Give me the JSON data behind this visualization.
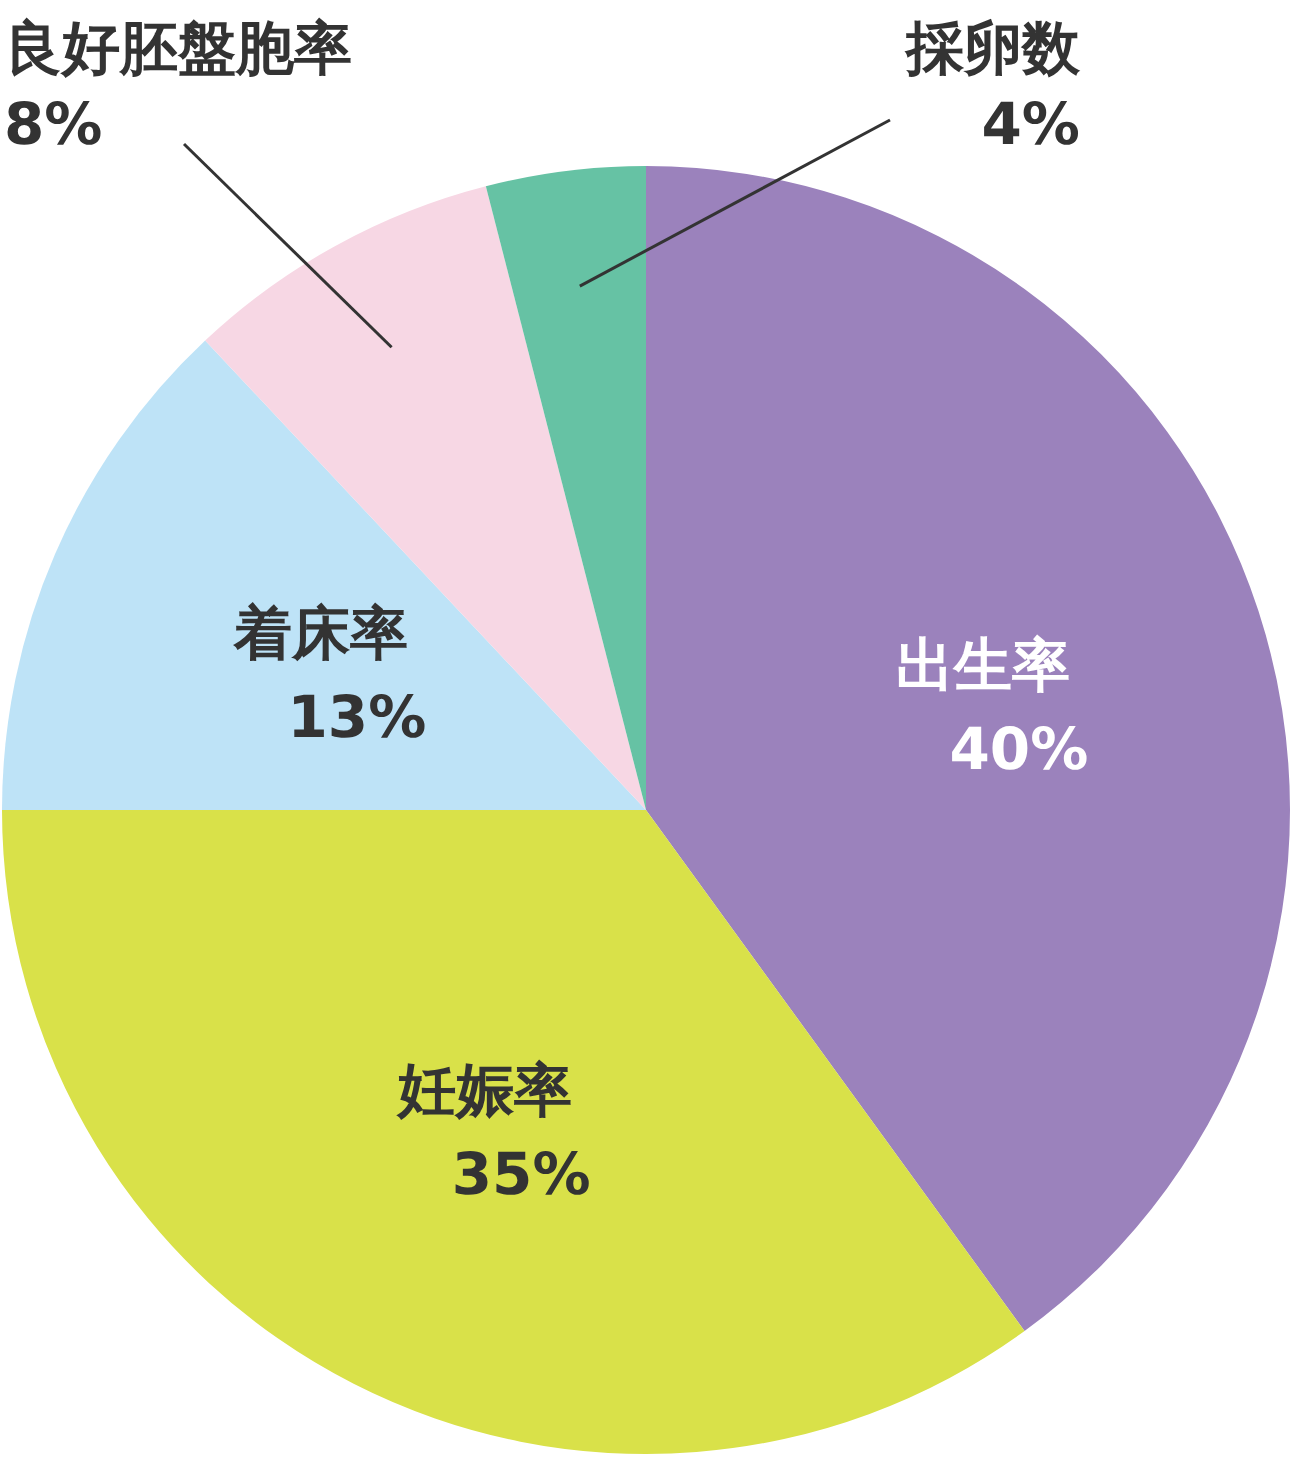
{
  "chart_data": {
    "type": "pie",
    "categories": [
      "出生率",
      "妊娠率",
      "着床率",
      "良好胚盤胞率",
      "採卵数"
    ],
    "values": [
      40,
      35,
      13,
      8,
      4
    ],
    "value_labels": [
      "40%",
      "35%",
      "13%",
      "8%",
      "4%"
    ],
    "colors": [
      "#9b82bc",
      "#d9e149",
      "#bee3f7",
      "#f7d7e4",
      "#66c2a4"
    ]
  }
}
